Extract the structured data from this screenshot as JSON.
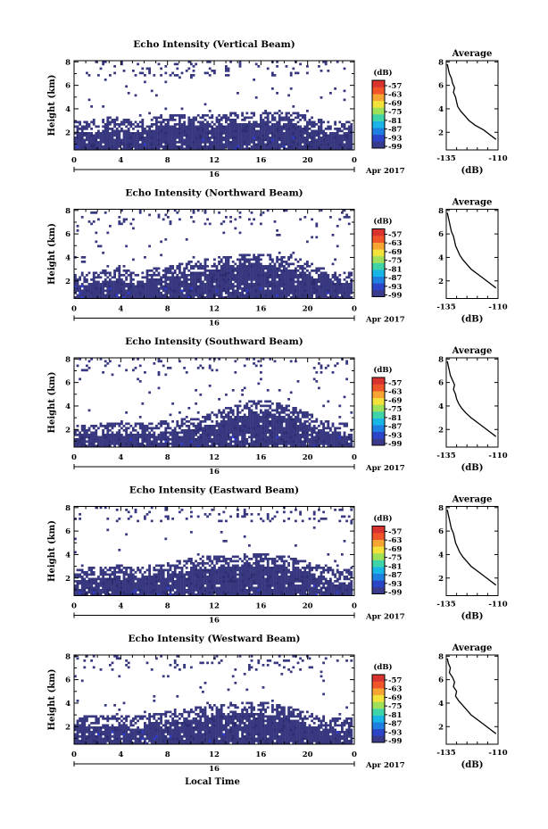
{
  "chart_data": [
    {
      "type": "heatmap",
      "title": "Echo Intensity (Vertical Beam)",
      "ylabel": "Height (km)",
      "xlabel": "",
      "x_ticks": [
        "0",
        "4",
        "8",
        "12",
        "16",
        "20",
        "0"
      ],
      "x_range_hours": [
        0,
        24
      ],
      "y_ticks": [
        "2",
        "4",
        "6",
        "8"
      ],
      "ylim_km": [
        0.5,
        8.1
      ],
      "date_label": "Apr 2017",
      "day_label": "16",
      "colorbar": {
        "label": "(dB)",
        "ticks": [
          "-57",
          "-63",
          "-69",
          "-75",
          "-81",
          "-87",
          "-93",
          "-99"
        ]
      },
      "echo_top_km": [
        2.5,
        2.5,
        2.5,
        2.8,
        2.8,
        2.5,
        2.6,
        2.8,
        3.0,
        3.0,
        3.1,
        3.0,
        3.1,
        3.1,
        3.2,
        3.2,
        3.2,
        3.3,
        3.2,
        3.2,
        3.0,
        2.6,
        2.5,
        2.4
      ],
      "profile": {
        "title": "Average",
        "xlabel": "(dB)",
        "x_ticks": [
          "-135",
          "-110"
        ],
        "xlim": [
          -135,
          -110
        ],
        "y_ticks": [
          "2",
          "4",
          "6",
          "8"
        ],
        "ylim": [
          0.5,
          8.1
        ],
        "x": [
          -134.5,
          -134,
          -133.5,
          -132.5,
          -132,
          -131,
          -131.5,
          -130.5,
          -130,
          -129.5,
          -128,
          -126,
          -124,
          -121,
          -117,
          -114,
          -111
        ],
        "y": [
          7.8,
          7.4,
          7.0,
          6.6,
          6.2,
          5.8,
          5.4,
          5.0,
          4.6,
          4.2,
          3.8,
          3.4,
          3.0,
          2.6,
          2.2,
          1.8,
          1.4
        ]
      }
    },
    {
      "type": "heatmap",
      "title": "Echo Intensity (Northward Beam)",
      "ylabel": "Height (km)",
      "xlabel": "",
      "x_ticks": [
        "0",
        "4",
        "8",
        "12",
        "16",
        "20",
        "0"
      ],
      "x_range_hours": [
        0,
        24
      ],
      "y_ticks": [
        "2",
        "4",
        "6",
        "8"
      ],
      "ylim_km": [
        0.5,
        8.1
      ],
      "date_label": "Apr 2017",
      "day_label": "16",
      "colorbar": {
        "label": "(dB)",
        "ticks": [
          "-57",
          "-63",
          "-69",
          "-75",
          "-81",
          "-87",
          "-93",
          "-99"
        ]
      },
      "echo_top_km": [
        2.2,
        2.2,
        2.3,
        2.5,
        2.6,
        2.3,
        2.4,
        2.6,
        2.8,
        3.0,
        3.2,
        3.3,
        3.5,
        3.6,
        3.7,
        3.8,
        3.8,
        3.7,
        3.6,
        3.5,
        3.2,
        2.7,
        2.5,
        2.3
      ],
      "profile": {
        "title": "Average",
        "xlabel": "(dB)",
        "x_ticks": [
          "-135",
          "-110"
        ],
        "xlim": [
          -135,
          -110
        ],
        "y_ticks": [
          "2",
          "4",
          "6",
          "8"
        ],
        "ylim": [
          0.5,
          8.1
        ],
        "x": [
          -134.5,
          -134,
          -133.5,
          -133,
          -132.5,
          -131.5,
          -131,
          -130.5,
          -129.5,
          -128.5,
          -127,
          -125,
          -123,
          -120,
          -117,
          -114,
          -111
        ],
        "y": [
          7.8,
          7.4,
          7.0,
          6.6,
          6.2,
          5.8,
          5.4,
          5.0,
          4.6,
          4.2,
          3.8,
          3.4,
          3.0,
          2.6,
          2.2,
          1.8,
          1.4
        ]
      }
    },
    {
      "type": "heatmap",
      "title": "Echo Intensity (Southward Beam)",
      "ylabel": "Height (km)",
      "xlabel": "",
      "x_ticks": [
        "0",
        "4",
        "8",
        "12",
        "16",
        "20",
        "0"
      ],
      "x_range_hours": [
        0,
        24
      ],
      "y_ticks": [
        "2",
        "4",
        "6",
        "8"
      ],
      "ylim_km": [
        0.5,
        8.1
      ],
      "date_label": "Apr 2017",
      "day_label": "16",
      "colorbar": {
        "label": "(dB)",
        "ticks": [
          "-57",
          "-63",
          "-69",
          "-75",
          "-81",
          "-87",
          "-93",
          "-99"
        ]
      },
      "echo_top_km": [
        1.8,
        1.9,
        2.0,
        2.1,
        2.2,
        2.1,
        2.0,
        2.1,
        2.3,
        2.4,
        2.5,
        2.7,
        3.0,
        3.3,
        3.6,
        3.9,
        4.0,
        3.9,
        3.7,
        3.4,
        3.0,
        2.6,
        2.2,
        2.0
      ],
      "profile": {
        "title": "Average",
        "xlabel": "(dB)",
        "x_ticks": [
          "-135",
          "-110"
        ],
        "xlim": [
          -135,
          -110
        ],
        "y_ticks": [
          "2",
          "4",
          "6",
          "8"
        ],
        "ylim": [
          0.5,
          8.1
        ],
        "x": [
          -134.5,
          -134,
          -133.5,
          -133,
          -132,
          -131,
          -131.5,
          -130.5,
          -130,
          -129,
          -127.5,
          -125.5,
          -123,
          -120,
          -117,
          -114,
          -111
        ],
        "y": [
          7.8,
          7.4,
          7.0,
          6.6,
          6.2,
          5.8,
          5.4,
          5.0,
          4.6,
          4.2,
          3.8,
          3.4,
          3.0,
          2.6,
          2.2,
          1.8,
          1.4
        ]
      }
    },
    {
      "type": "heatmap",
      "title": "Echo Intensity (Eastward Beam)",
      "ylabel": "Height (km)",
      "xlabel": "",
      "x_ticks": [
        "0",
        "4",
        "8",
        "12",
        "16",
        "20",
        "0"
      ],
      "x_range_hours": [
        0,
        24
      ],
      "y_ticks": [
        "2",
        "4",
        "6",
        "8"
      ],
      "ylim_km": [
        0.5,
        8.1
      ],
      "date_label": "Apr 2017",
      "day_label": "16",
      "colorbar": {
        "label": "(dB)",
        "ticks": [
          "-57",
          "-63",
          "-69",
          "-75",
          "-81",
          "-87",
          "-93",
          "-99"
        ]
      },
      "echo_top_km": [
        2.3,
        2.4,
        2.4,
        2.5,
        2.6,
        2.5,
        2.5,
        2.7,
        2.8,
        3.0,
        3.2,
        3.3,
        3.4,
        3.5,
        3.5,
        3.6,
        3.6,
        3.5,
        3.4,
        3.3,
        3.0,
        2.6,
        2.4,
        2.2
      ],
      "profile": {
        "title": "Average",
        "xlabel": "(dB)",
        "x_ticks": [
          "-135",
          "-110"
        ],
        "xlim": [
          -135,
          -110
        ],
        "y_ticks": [
          "2",
          "4",
          "6",
          "8"
        ],
        "ylim": [
          0.5,
          8.1
        ],
        "x": [
          -134.5,
          -134,
          -133.5,
          -133,
          -132.5,
          -131.5,
          -131,
          -130.5,
          -129.5,
          -128.5,
          -127,
          -125,
          -123,
          -120,
          -117,
          -114,
          -111
        ],
        "y": [
          7.8,
          7.4,
          7.0,
          6.6,
          6.2,
          5.8,
          5.4,
          5.0,
          4.6,
          4.2,
          3.8,
          3.4,
          3.0,
          2.6,
          2.2,
          1.8,
          1.4
        ]
      }
    },
    {
      "type": "heatmap",
      "title": "Echo Intensity (Westward Beam)",
      "ylabel": "Height (km)",
      "xlabel": "Local Time",
      "x_ticks": [
        "0",
        "4",
        "8",
        "12",
        "16",
        "20",
        "0"
      ],
      "x_range_hours": [
        0,
        24
      ],
      "y_ticks": [
        "2",
        "4",
        "6",
        "8"
      ],
      "ylim_km": [
        0.5,
        8.1
      ],
      "date_label": "Apr 2017",
      "day_label": "16",
      "colorbar": {
        "label": "(dB)",
        "ticks": [
          "-57",
          "-63",
          "-69",
          "-75",
          "-81",
          "-87",
          "-93",
          "-99"
        ]
      },
      "echo_top_km": [
        2.4,
        2.5,
        2.4,
        2.5,
        2.6,
        2.4,
        2.4,
        2.6,
        2.8,
        2.9,
        3.1,
        3.2,
        3.4,
        3.5,
        3.6,
        3.7,
        3.6,
        3.5,
        3.3,
        3.1,
        2.8,
        2.5,
        2.3,
        2.2
      ],
      "profile": {
        "title": "Average",
        "xlabel": "(dB)",
        "x_ticks": [
          "-135",
          "-110"
        ],
        "xlim": [
          -135,
          -110
        ],
        "y_ticks": [
          "2",
          "4",
          "6",
          "8"
        ],
        "ylim": [
          0.5,
          8.1
        ],
        "x": [
          -134.5,
          -134,
          -133,
          -133.5,
          -132,
          -131,
          -131.5,
          -130,
          -130.5,
          -129,
          -127,
          -125,
          -123,
          -120,
          -117,
          -114,
          -111
        ],
        "y": [
          7.8,
          7.4,
          7.0,
          6.6,
          6.2,
          5.8,
          5.4,
          5.0,
          4.6,
          4.2,
          3.8,
          3.4,
          3.0,
          2.6,
          2.2,
          1.8,
          1.4
        ]
      }
    }
  ],
  "colors": {
    "colormap": [
      "#3a3a8c",
      "#2b44c8",
      "#1e7fe0",
      "#19b5e6",
      "#3fd4a8",
      "#9fe05a",
      "#f2e23a",
      "#f7a532",
      "#f0552a",
      "#d9332f"
    ],
    "echo_main": "#383880",
    "echo_dark": "#2c2c70",
    "echo_speck": "#2d3cd6"
  }
}
